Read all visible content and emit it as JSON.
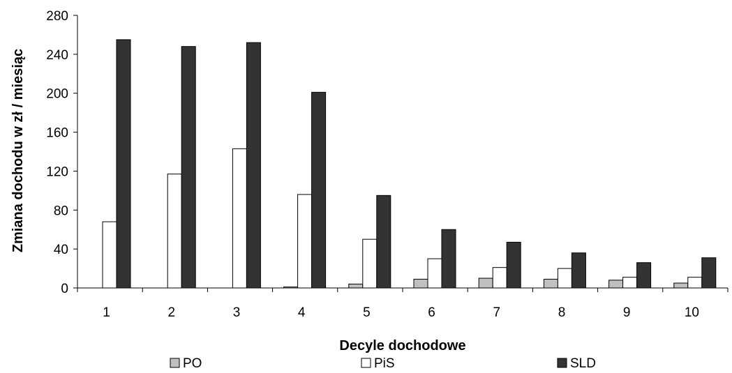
{
  "chart_data": {
    "type": "bar",
    "title": "",
    "xlabel": "Decyle dochodowe",
    "ylabel": "Zmiana dochodu w zł / miesiąc",
    "ylim": [
      0,
      280
    ],
    "yticks": [
      0,
      40,
      80,
      120,
      160,
      200,
      240,
      280
    ],
    "categories": [
      "1",
      "2",
      "3",
      "4",
      "5",
      "6",
      "7",
      "8",
      "9",
      "10"
    ],
    "series": [
      {
        "name": "PO",
        "color": "#c0c0c0",
        "values": [
          0,
          0,
          0,
          1,
          4,
          9,
          10,
          9,
          8,
          5
        ]
      },
      {
        "name": "PiS",
        "color": "#ffffff",
        "values": [
          68,
          117,
          143,
          96,
          50,
          30,
          21,
          20,
          11,
          11
        ]
      },
      {
        "name": "SLD",
        "color": "#333333",
        "values": [
          255,
          248,
          252,
          201,
          95,
          60,
          47,
          36,
          26,
          31
        ]
      }
    ],
    "grid": false,
    "legend_position": "bottom"
  }
}
